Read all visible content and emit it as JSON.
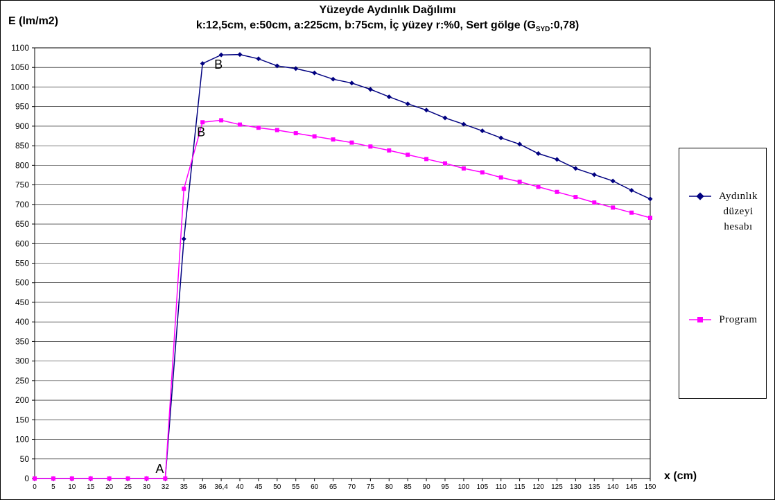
{
  "chart_data": {
    "type": "line",
    "title": "Yüzeyde Aydınlık Dağılımı",
    "subtitle_main": "k:12,5cm, e:50cm, a:225cm, b:75cm, İç yüzey r:%0, Sert gölge (G",
    "subtitle_sub": "SYD",
    "subtitle_tail": ":0,78)",
    "ylabel": "E (lm/m2)",
    "xlabel": "x (cm)",
    "ylim": [
      0,
      1100
    ],
    "ytick_step": 50,
    "grid": true,
    "legend_position": "right",
    "categories": [
      "0",
      "5",
      "10",
      "15",
      "20",
      "25",
      "30",
      "32",
      "35",
      "36",
      "36,4",
      "40",
      "45",
      "50",
      "55",
      "60",
      "65",
      "70",
      "75",
      "80",
      "85",
      "90",
      "95",
      "100",
      "105",
      "110",
      "115",
      "120",
      "125",
      "130",
      "135",
      "140",
      "145",
      "150"
    ],
    "series": [
      {
        "name": "Aydınlık düzeyi hesabı",
        "color": "#000080",
        "marker": "diamond",
        "values": [
          0,
          0,
          0,
          0,
          0,
          0,
          0,
          0,
          612,
          1060,
          1082,
          1083,
          1072,
          1054,
          1047,
          1036,
          1020,
          1010,
          994,
          975,
          957,
          941,
          921,
          905,
          888,
          870,
          854,
          830,
          815,
          792,
          776,
          760,
          736,
          714
        ]
      },
      {
        "name": "Program",
        "color": "#ff00ff",
        "marker": "square",
        "values": [
          0,
          0,
          0,
          0,
          0,
          0,
          0,
          0,
          740,
          910,
          915,
          904,
          896,
          890,
          882,
          874,
          866,
          858,
          848,
          838,
          827,
          816,
          805,
          792,
          782,
          769,
          758,
          745,
          732,
          719,
          705,
          692,
          679,
          666
        ]
      }
    ],
    "annotations": [
      {
        "text": "A",
        "x": "32",
        "y": 0
      },
      {
        "text": "B",
        "x": "36,4",
        "y": 1082
      },
      {
        "text": "B",
        "x": "36",
        "y": 910
      }
    ]
  }
}
